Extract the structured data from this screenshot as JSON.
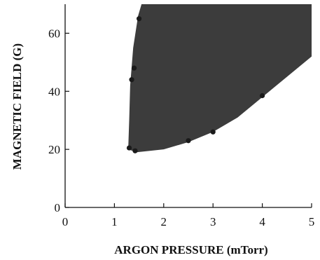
{
  "chart_data": {
    "type": "scatter",
    "title": "",
    "xlabel": "ARGON PRESSURE (mTorr)",
    "ylabel": "MAGNETIC FIELD (G)",
    "xlim": [
      0,
      5
    ],
    "ylim": [
      0,
      70
    ],
    "x_ticks": [
      "0",
      "1",
      "2",
      "3",
      "4",
      "5"
    ],
    "y_ticks": [
      "0",
      "20",
      "40",
      "60"
    ],
    "grid": false,
    "legend": "none",
    "shaded_region": {
      "description_color": "#3a3a3a",
      "left_boundary": [
        [
          1.28,
          20
        ],
        [
          1.3,
          30
        ],
        [
          1.32,
          42
        ],
        [
          1.38,
          55
        ],
        [
          1.48,
          66
        ],
        [
          1.55,
          70
        ]
      ],
      "lower_boundary": [
        [
          1.28,
          20
        ],
        [
          1.45,
          19
        ],
        [
          2.0,
          20
        ],
        [
          2.5,
          22.5
        ],
        [
          3.0,
          26
        ],
        [
          3.5,
          31
        ],
        [
          4.0,
          38
        ],
        [
          4.5,
          45
        ],
        [
          5.0,
          52
        ]
      ]
    },
    "series": [
      {
        "x": [
          1.3,
          1.35,
          1.4,
          1.42,
          1.5,
          2.5,
          3.0,
          4.0
        ],
        "y": [
          20.5,
          44,
          48,
          19.5,
          65,
          23,
          26,
          38.5
        ]
      }
    ],
    "colors": {
      "region": "#3c3c3c",
      "points": "#1a1a1a",
      "axes": "#111111"
    }
  }
}
